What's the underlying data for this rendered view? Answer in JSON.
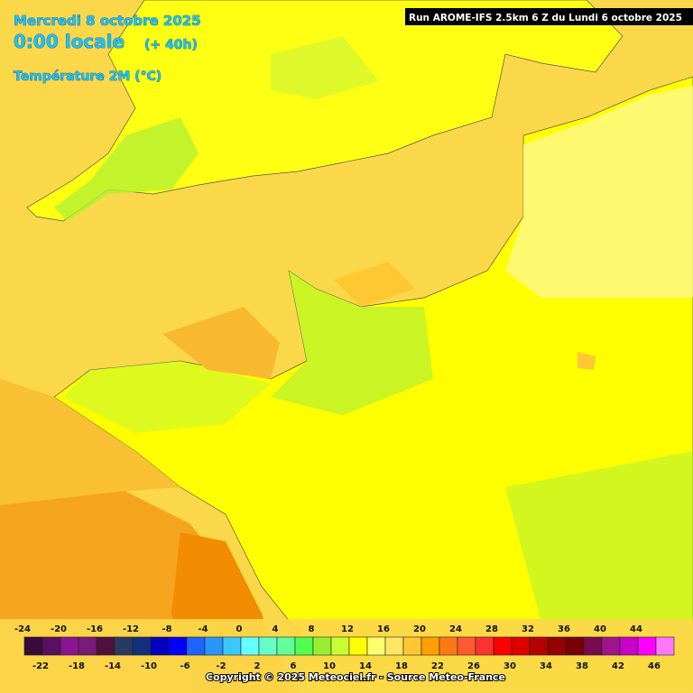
{
  "header": {
    "date": "Mercredi 8 octobre 2025",
    "time": "0:00 locale",
    "lead": "(+ 40h)",
    "parameter": "Température 2M (°C)",
    "run": "Run AROME-IFS 2.5km 6 Z du Lundi 6 octobre 2025"
  },
  "legend": {
    "values": [
      -24,
      -22,
      -20,
      -18,
      -16,
      -14,
      -12,
      -10,
      -8,
      -6,
      -4,
      -2,
      0,
      2,
      4,
      6,
      8,
      10,
      12,
      14,
      16,
      18,
      20,
      22,
      24,
      26,
      28,
      30,
      32,
      34,
      36,
      38,
      40,
      42,
      44,
      46
    ],
    "colors": [
      "#3a0a3a",
      "#5a1060",
      "#8c1490",
      "#7a1a7a",
      "#50103c",
      "#283a64",
      "#14307c",
      "#0000c0",
      "#0000ff",
      "#1e64ff",
      "#2896ff",
      "#3cc8ff",
      "#64ffff",
      "#64ffc8",
      "#64ff96",
      "#50ff50",
      "#96f032",
      "#c8ff32",
      "#ffff00",
      "#ffff6e",
      "#ffe664",
      "#ffc832",
      "#ffa000",
      "#ff7814",
      "#ff5a32",
      "#ff3232",
      "#ff0000",
      "#dc0000",
      "#b40000",
      "#960000",
      "#780000",
      "#7a0a50",
      "#a0148c",
      "#c800c8",
      "#ff00ff",
      "#ff78ff"
    ]
  },
  "footer": {
    "copyright": "Copyright © 2025 Meteociel.fr - Source Meteo-France"
  }
}
